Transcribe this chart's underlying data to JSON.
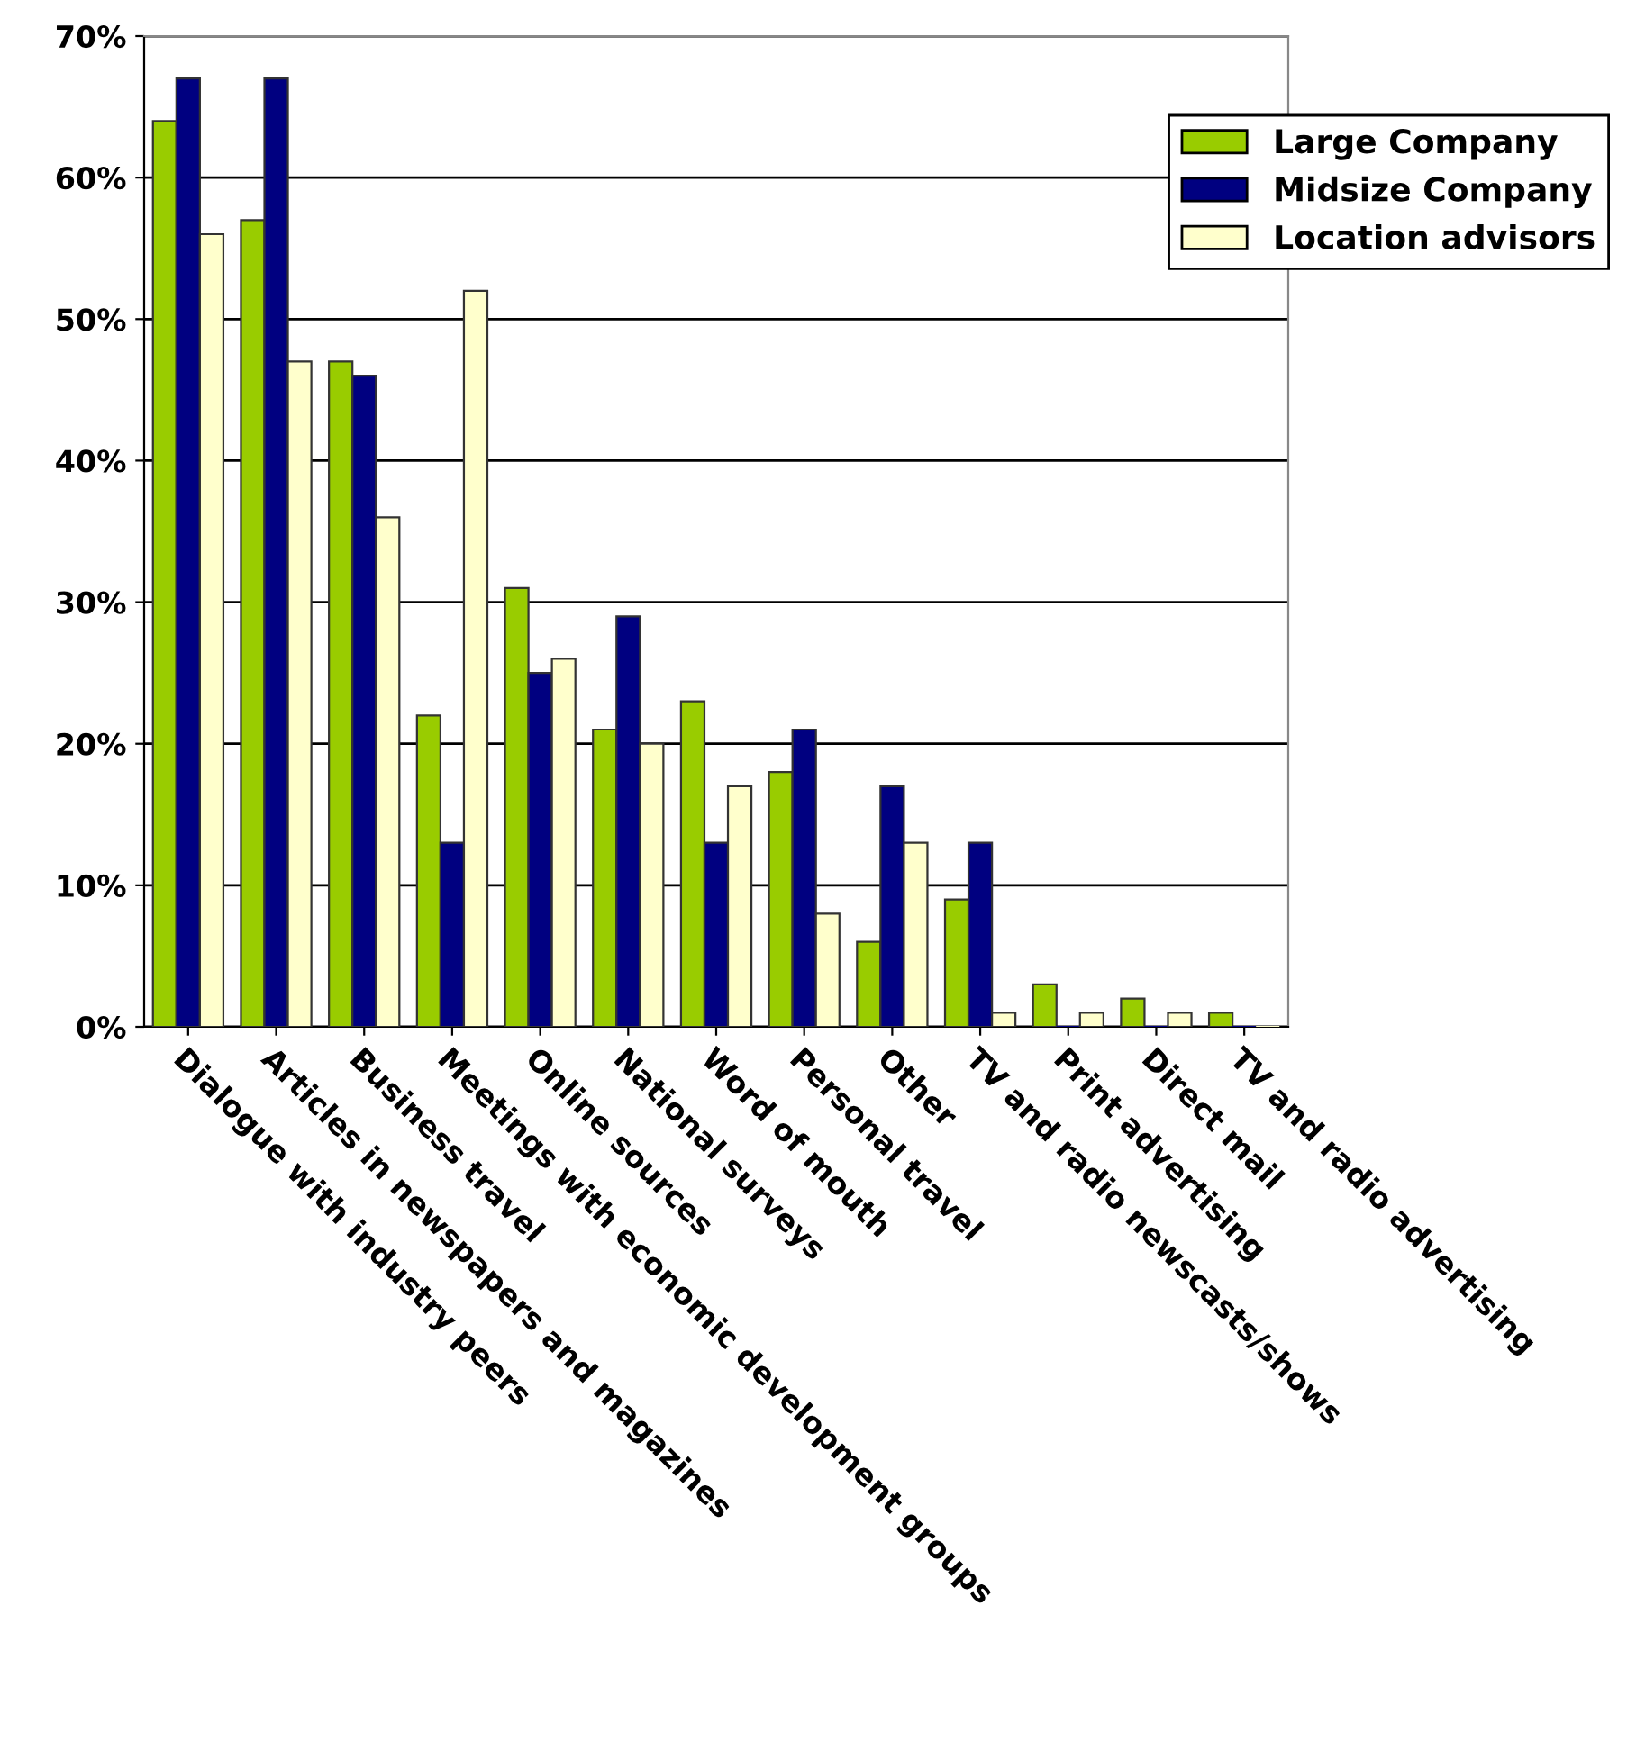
{
  "chart_data": {
    "type": "bar",
    "categories": [
      "Dialogue with industry peers",
      "Articles in newspapers and magazines",
      "Business travel",
      "Meetings with economic development groups",
      "Online sources",
      "National surveys",
      "Word of mouth",
      "Personal travel",
      "Other",
      "TV and radio newscasts/shows",
      "Print advertising",
      "Direct mail",
      "TV and radio advertising"
    ],
    "series": [
      {
        "name": "Large Company",
        "color": "#99cc00",
        "values": [
          64,
          57,
          47,
          22,
          31,
          21,
          23,
          18,
          6,
          9,
          3,
          2,
          1
        ]
      },
      {
        "name": "Midsize Company",
        "color": "#000080",
        "values": [
          67,
          67,
          46,
          13,
          25,
          29,
          13,
          21,
          17,
          13,
          0,
          0,
          0
        ]
      },
      {
        "name": "Location advisors",
        "color": "#ffffcc",
        "values": [
          56,
          47,
          36,
          52,
          26,
          20,
          17,
          8,
          13,
          1,
          1,
          1,
          0
        ]
      }
    ],
    "ylim": [
      0,
      70
    ],
    "yticks": [
      {
        "value": 0,
        "label": "0%"
      },
      {
        "value": 10,
        "label": "10%"
      },
      {
        "value": 20,
        "label": "20%"
      },
      {
        "value": 30,
        "label": "30%"
      },
      {
        "value": 40,
        "label": "40%"
      },
      {
        "value": 50,
        "label": "50%"
      },
      {
        "value": 60,
        "label": "60%"
      },
      {
        "value": 70,
        "label": "70%"
      }
    ],
    "grid": "y",
    "legend": "top right"
  }
}
